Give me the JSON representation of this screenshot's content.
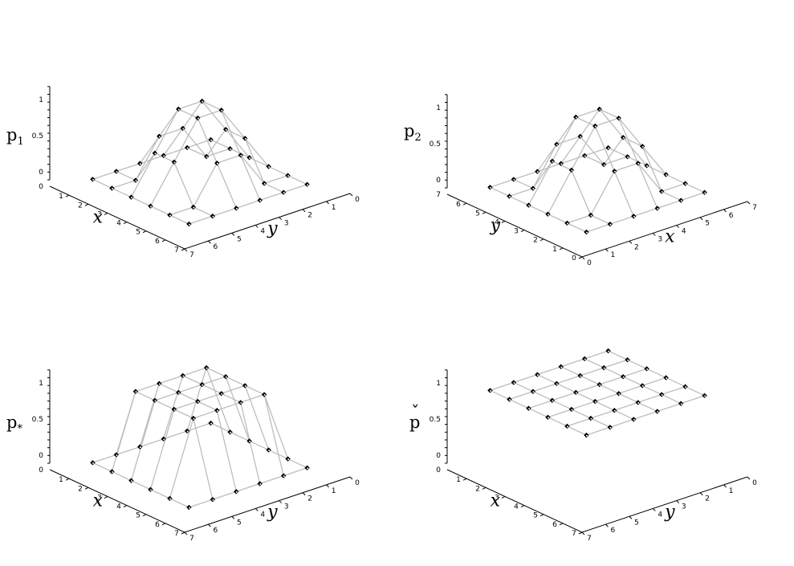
{
  "chart_data": [
    {
      "type": "surface",
      "zlabel": "p",
      "zsub": "1",
      "zaccent": "",
      "xlabel": "x",
      "ylabel": "y",
      "layout": "x-left",
      "zticks": [
        "0",
        "0.5",
        "1"
      ],
      "xticks": [
        "0",
        "1",
        "2",
        "3",
        "4",
        "5",
        "6",
        "7"
      ],
      "yticks": [
        "0",
        "1",
        "2",
        "3",
        "4",
        "5",
        "6",
        "7"
      ],
      "grid": [
        [
          0,
          0,
          0,
          0,
          0,
          0
        ],
        [
          0,
          0,
          0.5,
          0.5,
          0,
          0
        ],
        [
          0,
          0.5,
          1,
          1,
          0.5,
          0
        ],
        [
          0,
          0.5,
          1,
          1,
          0.5,
          0
        ],
        [
          0,
          0,
          0.5,
          0.5,
          0,
          0
        ],
        [
          0,
          0,
          0,
          0,
          0,
          0
        ]
      ]
    },
    {
      "type": "surface",
      "zlabel": "p",
      "zsub": "2",
      "zaccent": "",
      "xlabel": "x",
      "ylabel": "y",
      "layout": "y-left",
      "zticks": [
        "0",
        "0.5",
        "1"
      ],
      "xticks": [
        "0",
        "1",
        "2",
        "3",
        "4",
        "5",
        "6",
        "7"
      ],
      "yticks": [
        "0",
        "1",
        "2",
        "3",
        "4",
        "5",
        "6",
        "7"
      ],
      "grid": [
        [
          0,
          0,
          0,
          0,
          0,
          0
        ],
        [
          0,
          0,
          0.5,
          0.5,
          0,
          0
        ],
        [
          0,
          0.5,
          1,
          1,
          0.5,
          0
        ],
        [
          0,
          0.5,
          1,
          1,
          0.5,
          0
        ],
        [
          0,
          0,
          0.5,
          0.5,
          0,
          0
        ],
        [
          0,
          0,
          0,
          0,
          0,
          0
        ]
      ]
    },
    {
      "type": "surface",
      "zlabel": "p",
      "zsub": "*",
      "zaccent": "",
      "xlabel": "x",
      "ylabel": "y",
      "layout": "x-left",
      "zticks": [
        "0",
        "0.5",
        "1"
      ],
      "xticks": [
        "0",
        "1",
        "2",
        "3",
        "4",
        "5",
        "6",
        "7"
      ],
      "yticks": [
        "0",
        "1",
        "2",
        "3",
        "4",
        "5",
        "6",
        "7"
      ],
      "grid": [
        [
          0,
          0,
          0,
          0,
          0,
          0
        ],
        [
          0,
          1,
          1,
          1,
          1,
          0
        ],
        [
          0,
          1,
          1,
          1,
          1,
          0
        ],
        [
          0,
          1,
          1,
          1,
          1,
          0
        ],
        [
          0,
          1,
          1,
          1,
          1,
          0
        ],
        [
          0,
          0,
          0,
          0,
          0,
          0
        ]
      ]
    },
    {
      "type": "surface",
      "zlabel": "p",
      "zsub": "",
      "zaccent": "ˇ",
      "xlabel": "x",
      "ylabel": "y",
      "layout": "x-left",
      "zticks": [
        "0",
        "0.5",
        "1"
      ],
      "xticks": [
        "0",
        "1",
        "2",
        "3",
        "4",
        "5",
        "6",
        "7"
      ],
      "yticks": [
        "0",
        "1",
        "2",
        "3",
        "4",
        "5",
        "6",
        "7"
      ],
      "grid": [
        [
          1,
          1,
          1,
          1,
          1,
          1
        ],
        [
          1,
          1,
          1,
          1,
          1,
          1
        ],
        [
          1,
          1,
          1,
          1,
          1,
          1
        ],
        [
          1,
          1,
          1,
          1,
          1,
          1
        ],
        [
          1,
          1,
          1,
          1,
          1,
          1
        ],
        [
          1,
          1,
          1,
          1,
          1,
          1
        ]
      ]
    }
  ]
}
